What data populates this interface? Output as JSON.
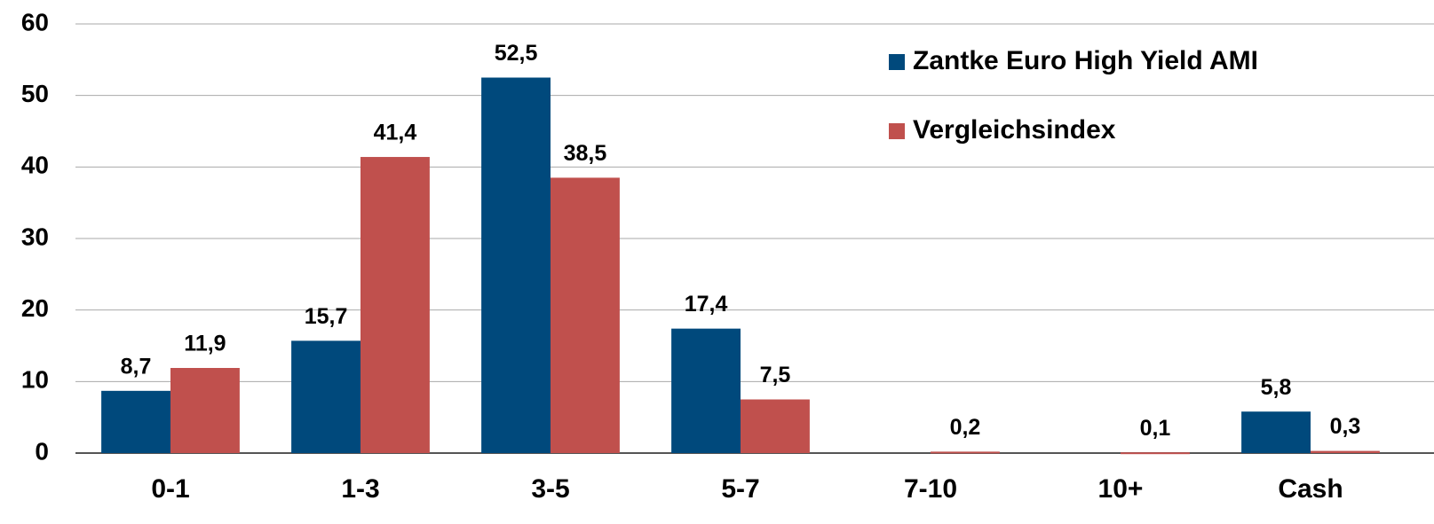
{
  "chart_data": {
    "type": "bar",
    "categories": [
      "0-1",
      "1-3",
      "3-5",
      "5-7",
      "7-10",
      "10+",
      "Cash"
    ],
    "series": [
      {
        "name": "Zantke Euro High Yield AMI",
        "color": "#00497c",
        "values": [
          8.7,
          15.7,
          52.5,
          17.4,
          null,
          null,
          5.8
        ],
        "value_labels": [
          "8,7",
          "15,7",
          "52,5",
          "17,4",
          null,
          null,
          "5,8"
        ]
      },
      {
        "name": "Vergleichsindex",
        "color": "#c0504d",
        "values": [
          11.9,
          41.4,
          38.5,
          7.5,
          0.2,
          0.1,
          0.3
        ],
        "value_labels": [
          "11,9",
          "41,4",
          "38,5",
          "7,5",
          "0,2",
          "0,1",
          "0,3"
        ]
      }
    ],
    "ylim": [
      0,
      60
    ],
    "yticks": [
      0,
      10,
      20,
      30,
      40,
      50,
      60
    ],
    "grid": true,
    "legend": "top-right"
  }
}
